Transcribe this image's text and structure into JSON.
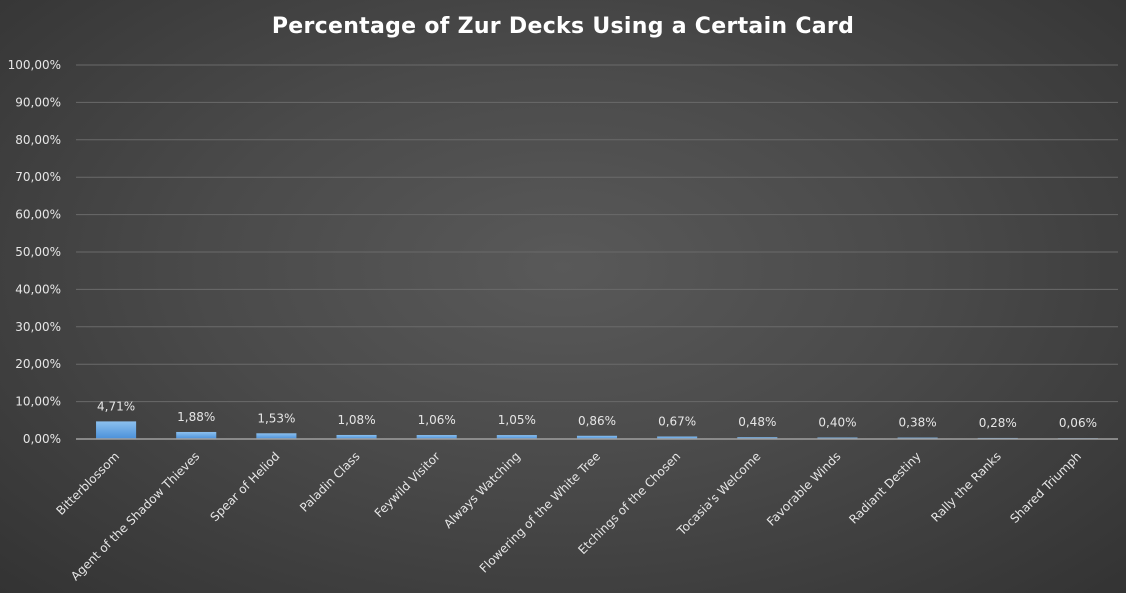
{
  "chart_data": {
    "type": "bar",
    "title": "Percentage of Zur Decks Using a Certain Card",
    "xlabel": "",
    "ylabel": "",
    "ylim": [
      0,
      100
    ],
    "yticks": [
      0,
      10,
      20,
      30,
      40,
      50,
      60,
      70,
      80,
      90,
      100
    ],
    "ytick_labels": [
      "0,00%",
      "10,00%",
      "20,00%",
      "30,00%",
      "40,00%",
      "50,00%",
      "60,00%",
      "70,00%",
      "80,00%",
      "90,00%",
      "100,00%"
    ],
    "categories": [
      "Bitterblossom",
      "Agent of the Shadow Thieves",
      "Spear of Heliod",
      "Paladin Class",
      "Feywild Visitor",
      "Always Watching",
      "Flowering of the White Tree",
      "Etchings of the Chosen",
      "Tocasia's Welcome",
      "Favorable Winds",
      "Radiant Destiny",
      "Rally the Ranks",
      "Shared Triumph"
    ],
    "values": [
      4.71,
      1.88,
      1.53,
      1.08,
      1.06,
      1.05,
      0.86,
      0.67,
      0.48,
      0.4,
      0.38,
      0.28,
      0.06
    ],
    "data_labels": [
      "4,71%",
      "1,88%",
      "1,53%",
      "1,08%",
      "1,06%",
      "1,05%",
      "0,86%",
      "0,67%",
      "0,48%",
      "0,40%",
      "0,38%",
      "0,28%",
      "0,06%"
    ],
    "grid": true,
    "legend": "none",
    "colors": {
      "bar_top": "#8cc0ee",
      "bar_bottom": "#4a90d9",
      "background": "#4a4a4a",
      "text": "#e6e6e6"
    }
  }
}
